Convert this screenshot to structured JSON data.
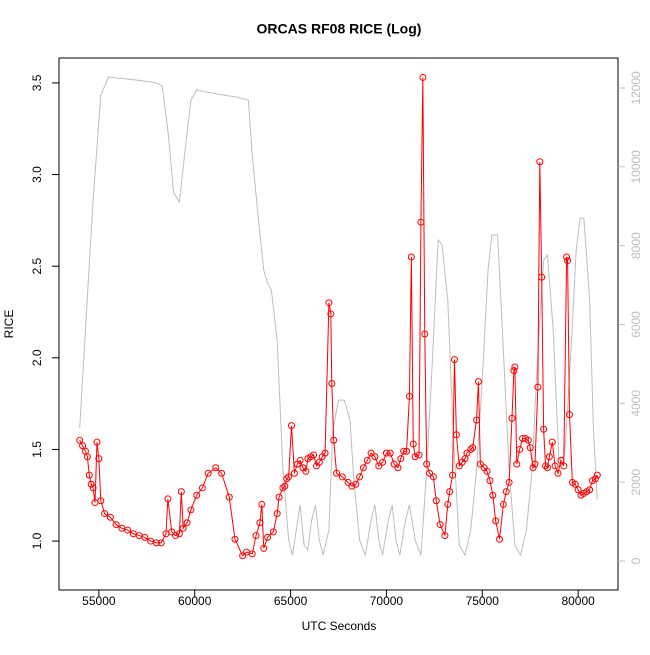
{
  "chart_data": {
    "type": "line",
    "title": "ORCAS RF08 RICE (Log)",
    "x_label": "UTC Seconds",
    "y_label": "RICE",
    "xlim": [
      52920,
      82080
    ],
    "xticks": [
      55000,
      60000,
      65000,
      70000,
      75000,
      80000
    ],
    "ylim": [
      0.733,
      3.636
    ],
    "yticks": [
      {
        "value": 1,
        "label": "1.0"
      },
      1.5,
      {
        "value": 2,
        "label": "2.0"
      },
      2.5,
      {
        "value": 3,
        "label": "3.0"
      },
      3.5
    ],
    "y2lim": [
      -736,
      12761
    ],
    "y2ticks": [
      0,
      2000,
      4000,
      6000,
      8000,
      10000,
      12000
    ],
    "series": [
      {
        "color": "#bebebe",
        "axis": "y2",
        "markers": false,
        "x": [
          54000,
          54300,
          54700,
          55100,
          55500,
          56000,
          57000,
          58000,
          58300,
          58600,
          58900,
          59200,
          59500,
          59800,
          60100,
          60600,
          61500,
          62200,
          62800,
          63000,
          63300,
          63600,
          63800,
          64000,
          64300,
          64600,
          64900,
          65100,
          65300,
          65500,
          65700,
          65900,
          66100,
          66300,
          66500,
          66700,
          67000,
          67200,
          67500,
          67800,
          68100,
          68300,
          68600,
          68900,
          69200,
          69400,
          69600,
          69800,
          70100,
          70300,
          70500,
          70700,
          71000,
          71200,
          71500,
          71800,
          72100,
          72400,
          72700,
          72900,
          73200,
          73500,
          73800,
          74100,
          74400,
          74700,
          75000,
          75300,
          75500,
          75800,
          76100,
          76400,
          76700,
          77000,
          77300,
          77600,
          77900,
          78200,
          78400,
          78700,
          79000,
          79300,
          79600,
          79900,
          80100,
          80300,
          80600,
          80800,
          81000
        ],
        "values": [
          3370,
          5860,
          9160,
          11820,
          12280,
          12250,
          12200,
          12130,
          12050,
          10930,
          9340,
          9110,
          10430,
          11690,
          11950,
          11900,
          11820,
          11770,
          11690,
          10300,
          8780,
          7380,
          7050,
          6870,
          5600,
          2310,
          530,
          150,
          790,
          1420,
          410,
          280,
          1040,
          1420,
          530,
          150,
          790,
          3320,
          4080,
          4080,
          3580,
          2050,
          530,
          150,
          1040,
          1420,
          530,
          150,
          1040,
          1420,
          530,
          150,
          1040,
          1420,
          530,
          150,
          2310,
          5100,
          8140,
          8020,
          6620,
          3070,
          410,
          150,
          790,
          2310,
          4590,
          7380,
          8270,
          8270,
          5350,
          2310,
          410,
          150,
          790,
          2310,
          5350,
          7630,
          7760,
          5860,
          2560,
          2690,
          5100,
          7890,
          8700,
          8700,
          6620,
          3320,
          1550
        ]
      },
      {
        "color": "#ff0000",
        "markers": true,
        "x": [
          54000,
          54150,
          54300,
          54400,
          54500,
          54600,
          54700,
          54800,
          54900,
          55000,
          55100,
          55300,
          55600,
          55900,
          56200,
          56500,
          56800,
          57100,
          57400,
          57700,
          58000,
          58250,
          58500,
          58600,
          58800,
          59000,
          59200,
          59300,
          59400,
          59600,
          59800,
          60100,
          60400,
          60700,
          61100,
          61400,
          61800,
          62100,
          62500,
          62700,
          63000,
          63200,
          63400,
          63500,
          63600,
          63800,
          64100,
          64300,
          64400,
          64600,
          64700,
          64800,
          64900,
          65050,
          65200,
          65350,
          65500,
          65650,
          65800,
          65900,
          66050,
          66200,
          66350,
          66500,
          66650,
          66800,
          67000,
          67100,
          67150,
          67250,
          67400,
          67700,
          68000,
          68200,
          68400,
          68600,
          68800,
          69000,
          69200,
          69400,
          69600,
          69800,
          70000,
          70200,
          70400,
          70600,
          70750,
          70900,
          71050,
          71200,
          71300,
          71400,
          71500,
          71700,
          71800,
          71900,
          72000,
          72100,
          72250,
          72450,
          72600,
          72800,
          73050,
          73200,
          73300,
          73450,
          73550,
          73650,
          73800,
          73950,
          74100,
          74200,
          74400,
          74500,
          74700,
          74800,
          74900,
          75100,
          75250,
          75400,
          75550,
          75700,
          75900,
          76100,
          76250,
          76400,
          76550,
          76650,
          76700,
          76800,
          76950,
          77100,
          77250,
          77400,
          77500,
          77650,
          77750,
          77900,
          78000,
          78100,
          78200,
          78300,
          78400,
          78500,
          78650,
          78800,
          78950,
          79100,
          79250,
          79400,
          79450,
          79550,
          79700,
          79850,
          80000,
          80150,
          80300,
          80450,
          80600,
          80750,
          80900,
          81000
        ],
        "values": [
          1.55,
          1.52,
          1.49,
          1.46,
          1.36,
          1.31,
          1.29,
          1.21,
          1.54,
          1.45,
          1.22,
          1.15,
          1.13,
          1.09,
          1.07,
          1.06,
          1.04,
          1.03,
          1.02,
          1.0,
          0.99,
          0.99,
          1.04,
          1.23,
          1.05,
          1.03,
          1.04,
          1.27,
          1.07,
          1.1,
          1.17,
          1.25,
          1.29,
          1.37,
          1.4,
          1.37,
          1.24,
          1.01,
          0.92,
          0.94,
          0.93,
          1.03,
          1.1,
          1.2,
          0.96,
          1.02,
          1.05,
          1.15,
          1.24,
          1.29,
          1.3,
          1.34,
          1.35,
          1.63,
          1.37,
          1.42,
          1.44,
          1.4,
          1.38,
          1.45,
          1.46,
          1.47,
          1.41,
          1.43,
          1.46,
          1.48,
          2.3,
          2.24,
          1.86,
          1.55,
          1.37,
          1.35,
          1.32,
          1.3,
          1.31,
          1.35,
          1.4,
          1.44,
          1.48,
          1.46,
          1.41,
          1.43,
          1.48,
          1.48,
          1.42,
          1.4,
          1.45,
          1.49,
          1.49,
          1.79,
          2.55,
          1.53,
          1.46,
          1.47,
          2.74,
          3.53,
          2.13,
          1.42,
          1.37,
          1.35,
          1.22,
          1.09,
          1.03,
          1.2,
          1.27,
          1.36,
          1.99,
          1.58,
          1.41,
          1.43,
          1.45,
          1.48,
          1.5,
          1.51,
          1.66,
          1.87,
          1.42,
          1.4,
          1.38,
          1.33,
          1.25,
          1.11,
          1.01,
          1.2,
          1.27,
          1.32,
          1.67,
          1.93,
          1.95,
          1.42,
          1.5,
          1.56,
          1.56,
          1.55,
          1.51,
          1.4,
          1.42,
          1.84,
          3.07,
          2.44,
          1.61,
          1.41,
          1.4,
          1.46,
          1.54,
          1.41,
          1.37,
          1.44,
          1.41,
          2.55,
          2.53,
          1.69,
          1.32,
          1.31,
          1.28,
          1.25,
          1.26,
          1.27,
          1.28,
          1.33,
          1.34,
          1.36
        ]
      }
    ]
  }
}
